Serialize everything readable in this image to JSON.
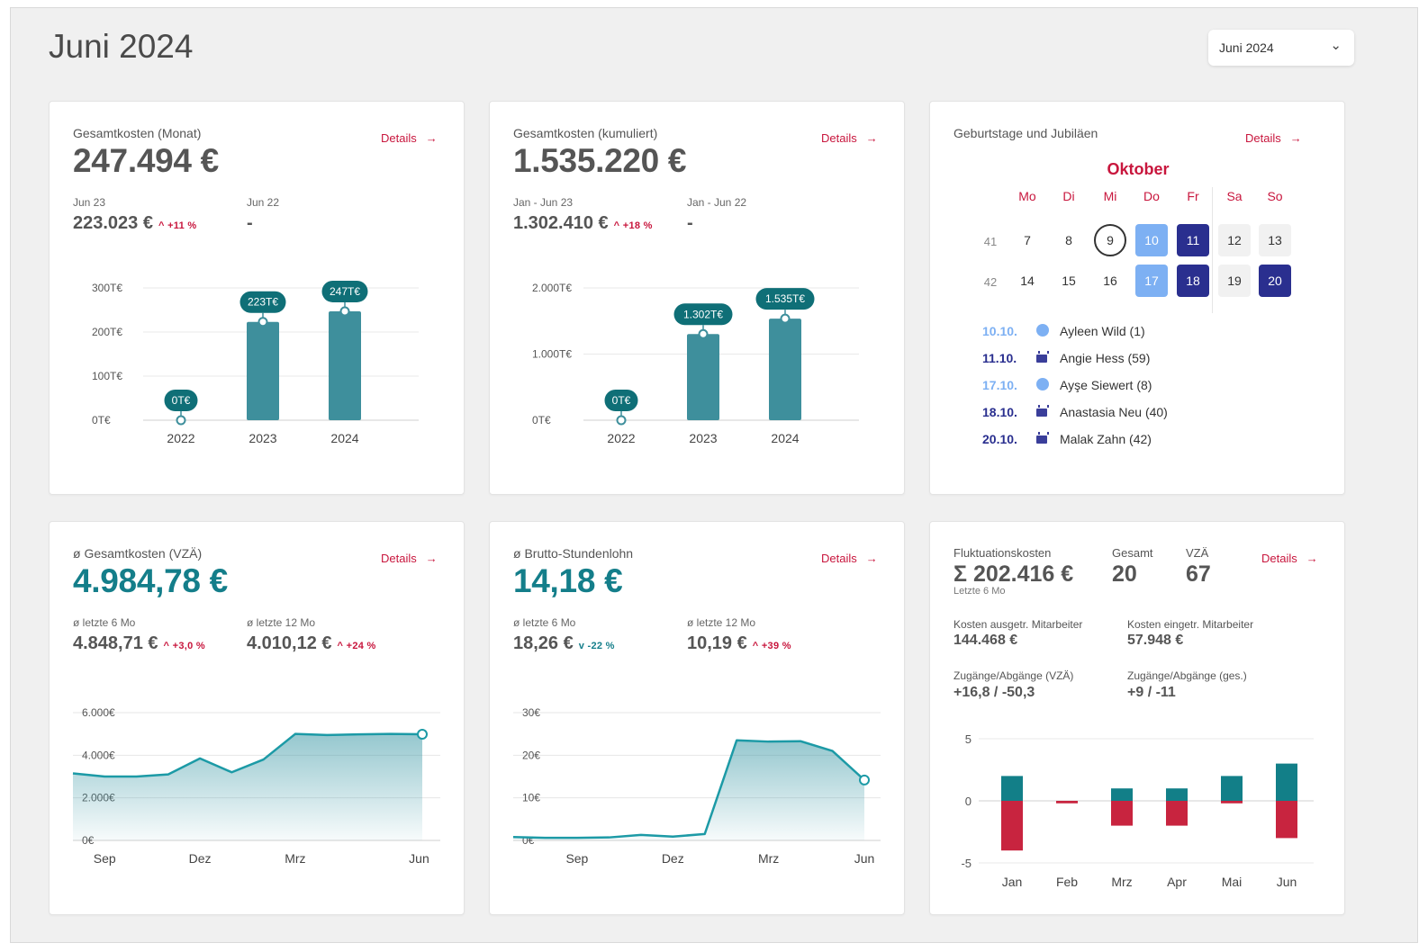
{
  "header": {
    "title": "Juni 2024",
    "period_select": "Juni 2024"
  },
  "cards": {
    "monat": {
      "title": "Gesamtkosten (Monat)",
      "details": "Details",
      "value": "247.494 €",
      "cmp1_label": "Jun 23",
      "cmp1_value": "223.023 €",
      "cmp1_delta": "^ +11 %",
      "cmp2_label": "Jun 22",
      "cmp2_value": "-"
    },
    "kumuliert": {
      "title": "Gesamtkosten (kumuliert)",
      "details": "Details",
      "value": "1.535.220 €",
      "cmp1_label": "Jan - Jun 23",
      "cmp1_value": "1.302.410 €",
      "cmp1_delta": "^ +18 %",
      "cmp2_label": "Jan - Jun 22",
      "cmp2_value": "-"
    },
    "geburtstage": {
      "title": "Geburtstage und Jubiläen",
      "details": "Details",
      "month": "Oktober",
      "weekdays": [
        "Mo",
        "Di",
        "Mi",
        "Do",
        "Fr",
        "Sa",
        "So"
      ],
      "weeks": [
        {
          "week": "41",
          "days": [
            "7",
            "8",
            "9",
            "10",
            "11",
            "12",
            "13"
          ]
        },
        {
          "week": "42",
          "days": [
            "14",
            "15",
            "16",
            "17",
            "18",
            "19",
            "20"
          ]
        }
      ],
      "entries": [
        {
          "date": "10.10.",
          "name": "Ayleen Wild (1)",
          "type": "dot",
          "color": "#7db0f3"
        },
        {
          "date": "11.10.",
          "name": "Angie Hess (59)",
          "type": "cake",
          "color": "#3a3e9a"
        },
        {
          "date": "17.10.",
          "name": "Ayşe Siewert (8)",
          "type": "dot",
          "color": "#7db0f3"
        },
        {
          "date": "18.10.",
          "name": "Anastasia Neu (40)",
          "type": "cake",
          "color": "#3a3e9a"
        },
        {
          "date": "20.10.",
          "name": "Malak Zahn (42)",
          "type": "cake",
          "color": "#3a3e9a"
        }
      ]
    },
    "vza": {
      "title": "ø Gesamtkosten (VZÄ)",
      "details": "Details",
      "value": "4.984,78 €",
      "cmp1_label": "ø letzte 6 Mo",
      "cmp1_value": "4.848,71 €",
      "cmp1_delta": "^ +3,0 %",
      "cmp2_label": "ø letzte 12 Mo",
      "cmp2_value": "4.010,12 €",
      "cmp2_delta": "^ +24 %"
    },
    "brutto": {
      "title": "ø Brutto-Stundenlohn",
      "details": "Details",
      "value": "14,18 €",
      "cmp1_label": "ø letzte 6 Mo",
      "cmp1_value": "18,26 €",
      "cmp1_delta": "v -22 %",
      "cmp2_label": "ø letzte 12 Mo",
      "cmp2_value": "10,19 €",
      "cmp2_delta": "^ +39 %"
    },
    "fluktuation": {
      "title": "Fluktuationskosten",
      "details": "Details",
      "value": "Σ 202.416 €",
      "value_caption": "Letzte 6 Mo",
      "gesamt_label": "Gesamt",
      "gesamt_value": "20",
      "vza_label": "VZÄ",
      "vza_value": "67",
      "k_aus_label": "Kosten ausgetr. Mitarbeiter",
      "k_aus_value": "144.468 €",
      "k_ein_label": "Kosten eingetr. Mitarbeiter",
      "k_ein_value": "57.948 €",
      "za_vza_label": "Zugänge/Abgänge (VZÄ)",
      "za_vza_value": "+16,8 / -50,3",
      "za_ges_label": "Zugänge/Abgänge (ges.)",
      "za_ges_value": "+9 / -11"
    }
  },
  "chart_data": [
    {
      "id": "monat",
      "type": "bar",
      "categories": [
        "2022",
        "2023",
        "2024"
      ],
      "values": [
        0,
        223,
        247
      ],
      "value_labels": [
        "0T€",
        "223T€",
        "247T€"
      ],
      "yticks": [
        "0T€",
        "100T€",
        "200T€",
        "300T€"
      ],
      "ylim": [
        0,
        300
      ],
      "color": "#3e8f9c"
    },
    {
      "id": "kumuliert",
      "type": "bar",
      "categories": [
        "2022",
        "2023",
        "2024"
      ],
      "values": [
        0,
        1302,
        1535
      ],
      "value_labels": [
        "0T€",
        "1.302T€",
        "1.535T€"
      ],
      "yticks": [
        "0T€",
        "1.000T€",
        "2.000T€"
      ],
      "ylim": [
        0,
        2000
      ],
      "color": "#3e8f9c"
    },
    {
      "id": "vza",
      "type": "area",
      "x": [
        0,
        1,
        2,
        3,
        4,
        5,
        6,
        7,
        8,
        9,
        10,
        11
      ],
      "values": [
        3150,
        3000,
        3000,
        3100,
        3850,
        3200,
        3800,
        5000,
        4950,
        4980,
        5000,
        4985
      ],
      "xticks": [
        "Sep",
        "Dez",
        "Mrz",
        "Jun"
      ],
      "xtick_positions": [
        1,
        4,
        7,
        10.9
      ],
      "yticks": [
        "0€",
        "2.000€",
        "4.000€",
        "6.000€"
      ],
      "ylim": [
        0,
        6000
      ],
      "color": "#1c9aa6"
    },
    {
      "id": "brutto",
      "type": "area",
      "x": [
        0,
        1,
        2,
        3,
        4,
        5,
        6,
        7,
        8,
        9,
        10,
        11
      ],
      "values": [
        0.8,
        0.6,
        0.6,
        0.7,
        1.3,
        0.9,
        1.5,
        23.5,
        23.2,
        23.3,
        21,
        14.18
      ],
      "xticks": [
        "Sep",
        "Dez",
        "Mrz",
        "Jun"
      ],
      "xtick_positions": [
        2,
        5,
        8,
        11
      ],
      "yticks": [
        "0€",
        "10€",
        "20€",
        "30€"
      ],
      "ylim": [
        0,
        30
      ],
      "color": "#1c9aa6"
    },
    {
      "id": "fluktuation",
      "type": "bar",
      "categories": [
        "Jan",
        "Feb",
        "Mrz",
        "Apr",
        "Mai",
        "Jun"
      ],
      "series": [
        {
          "values": [
            2,
            0,
            1,
            1,
            2,
            3
          ],
          "color": "#127f88"
        },
        {
          "values": [
            -4,
            -0.2,
            -2,
            -2,
            -0.2,
            -3
          ],
          "color": "#c8243f"
        }
      ],
      "yticks": [
        "-5",
        "0",
        "5"
      ],
      "ylim": [
        -5,
        5
      ]
    }
  ]
}
